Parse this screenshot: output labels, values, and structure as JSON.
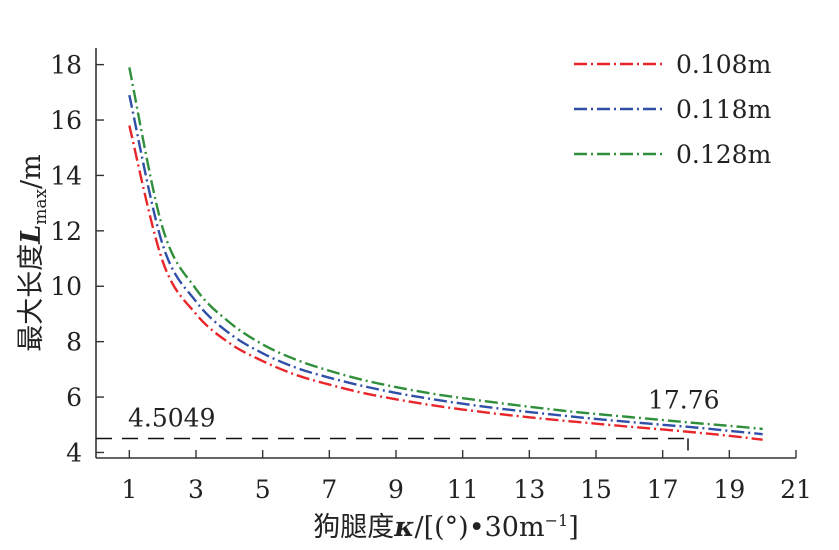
{
  "chart_data": {
    "type": "line",
    "title": "",
    "xlabel": "狗腿度κ/[(°)·30m⁻¹]",
    "ylabel": "最大长度Lmax/m",
    "ylabel_parts": {
      "prefix": "最大长度",
      "symbol": "L",
      "subscript": "max",
      "unit": "/m"
    },
    "xlabel_parts": {
      "prefix": "狗腿度",
      "symbol": "κ",
      "unit_pre": "/[(°)•30m",
      "unit_exp": "−1",
      "unit_post": "]"
    },
    "xlim": [
      0,
      21
    ],
    "ylim": [
      3.8,
      18.6
    ],
    "xticks": [
      1,
      3,
      5,
      7,
      9,
      11,
      13,
      15,
      17,
      19,
      21
    ],
    "yticks": [
      4,
      6,
      8,
      10,
      12,
      14,
      16,
      18
    ],
    "grid": false,
    "legend_position": "top-right",
    "series": [
      {
        "name": "0.108m",
        "color": "#e8262a",
        "x": [
          1,
          2,
          3,
          4,
          5,
          6,
          7,
          8,
          9,
          10,
          11,
          12,
          13,
          14,
          15,
          16,
          17,
          18,
          19,
          20
        ],
        "y": [
          15.8,
          10.9,
          9.0,
          7.95,
          7.3,
          6.8,
          6.45,
          6.15,
          5.92,
          5.72,
          5.55,
          5.4,
          5.27,
          5.15,
          5.04,
          4.93,
          4.83,
          4.72,
          4.6,
          4.46
        ]
      },
      {
        "name": "0.118m",
        "color": "#2f4fa8",
        "x": [
          1,
          2,
          3,
          4,
          5,
          6,
          7,
          8,
          9,
          10,
          11,
          12,
          13,
          14,
          15,
          16,
          17,
          18,
          19,
          20
        ],
        "y": [
          16.9,
          11.5,
          9.45,
          8.3,
          7.58,
          7.06,
          6.7,
          6.4,
          6.15,
          5.94,
          5.76,
          5.6,
          5.46,
          5.33,
          5.21,
          5.1,
          5.0,
          4.9,
          4.78,
          4.66
        ]
      },
      {
        "name": "0.128m",
        "color": "#2f8f3a",
        "x": [
          1,
          2,
          3,
          4,
          5,
          6,
          7,
          8,
          9,
          10,
          11,
          12,
          13,
          14,
          15,
          16,
          17,
          18,
          19,
          20
        ],
        "y": [
          17.9,
          12.1,
          9.9,
          8.7,
          7.9,
          7.35,
          6.95,
          6.62,
          6.36,
          6.14,
          5.96,
          5.8,
          5.65,
          5.51,
          5.39,
          5.28,
          5.17,
          5.06,
          4.96,
          4.85
        ]
      }
    ],
    "reference_line": {
      "y": 4.5049,
      "x_end": 17.76,
      "label_y": "4.5049",
      "label_x": "17.76"
    }
  }
}
